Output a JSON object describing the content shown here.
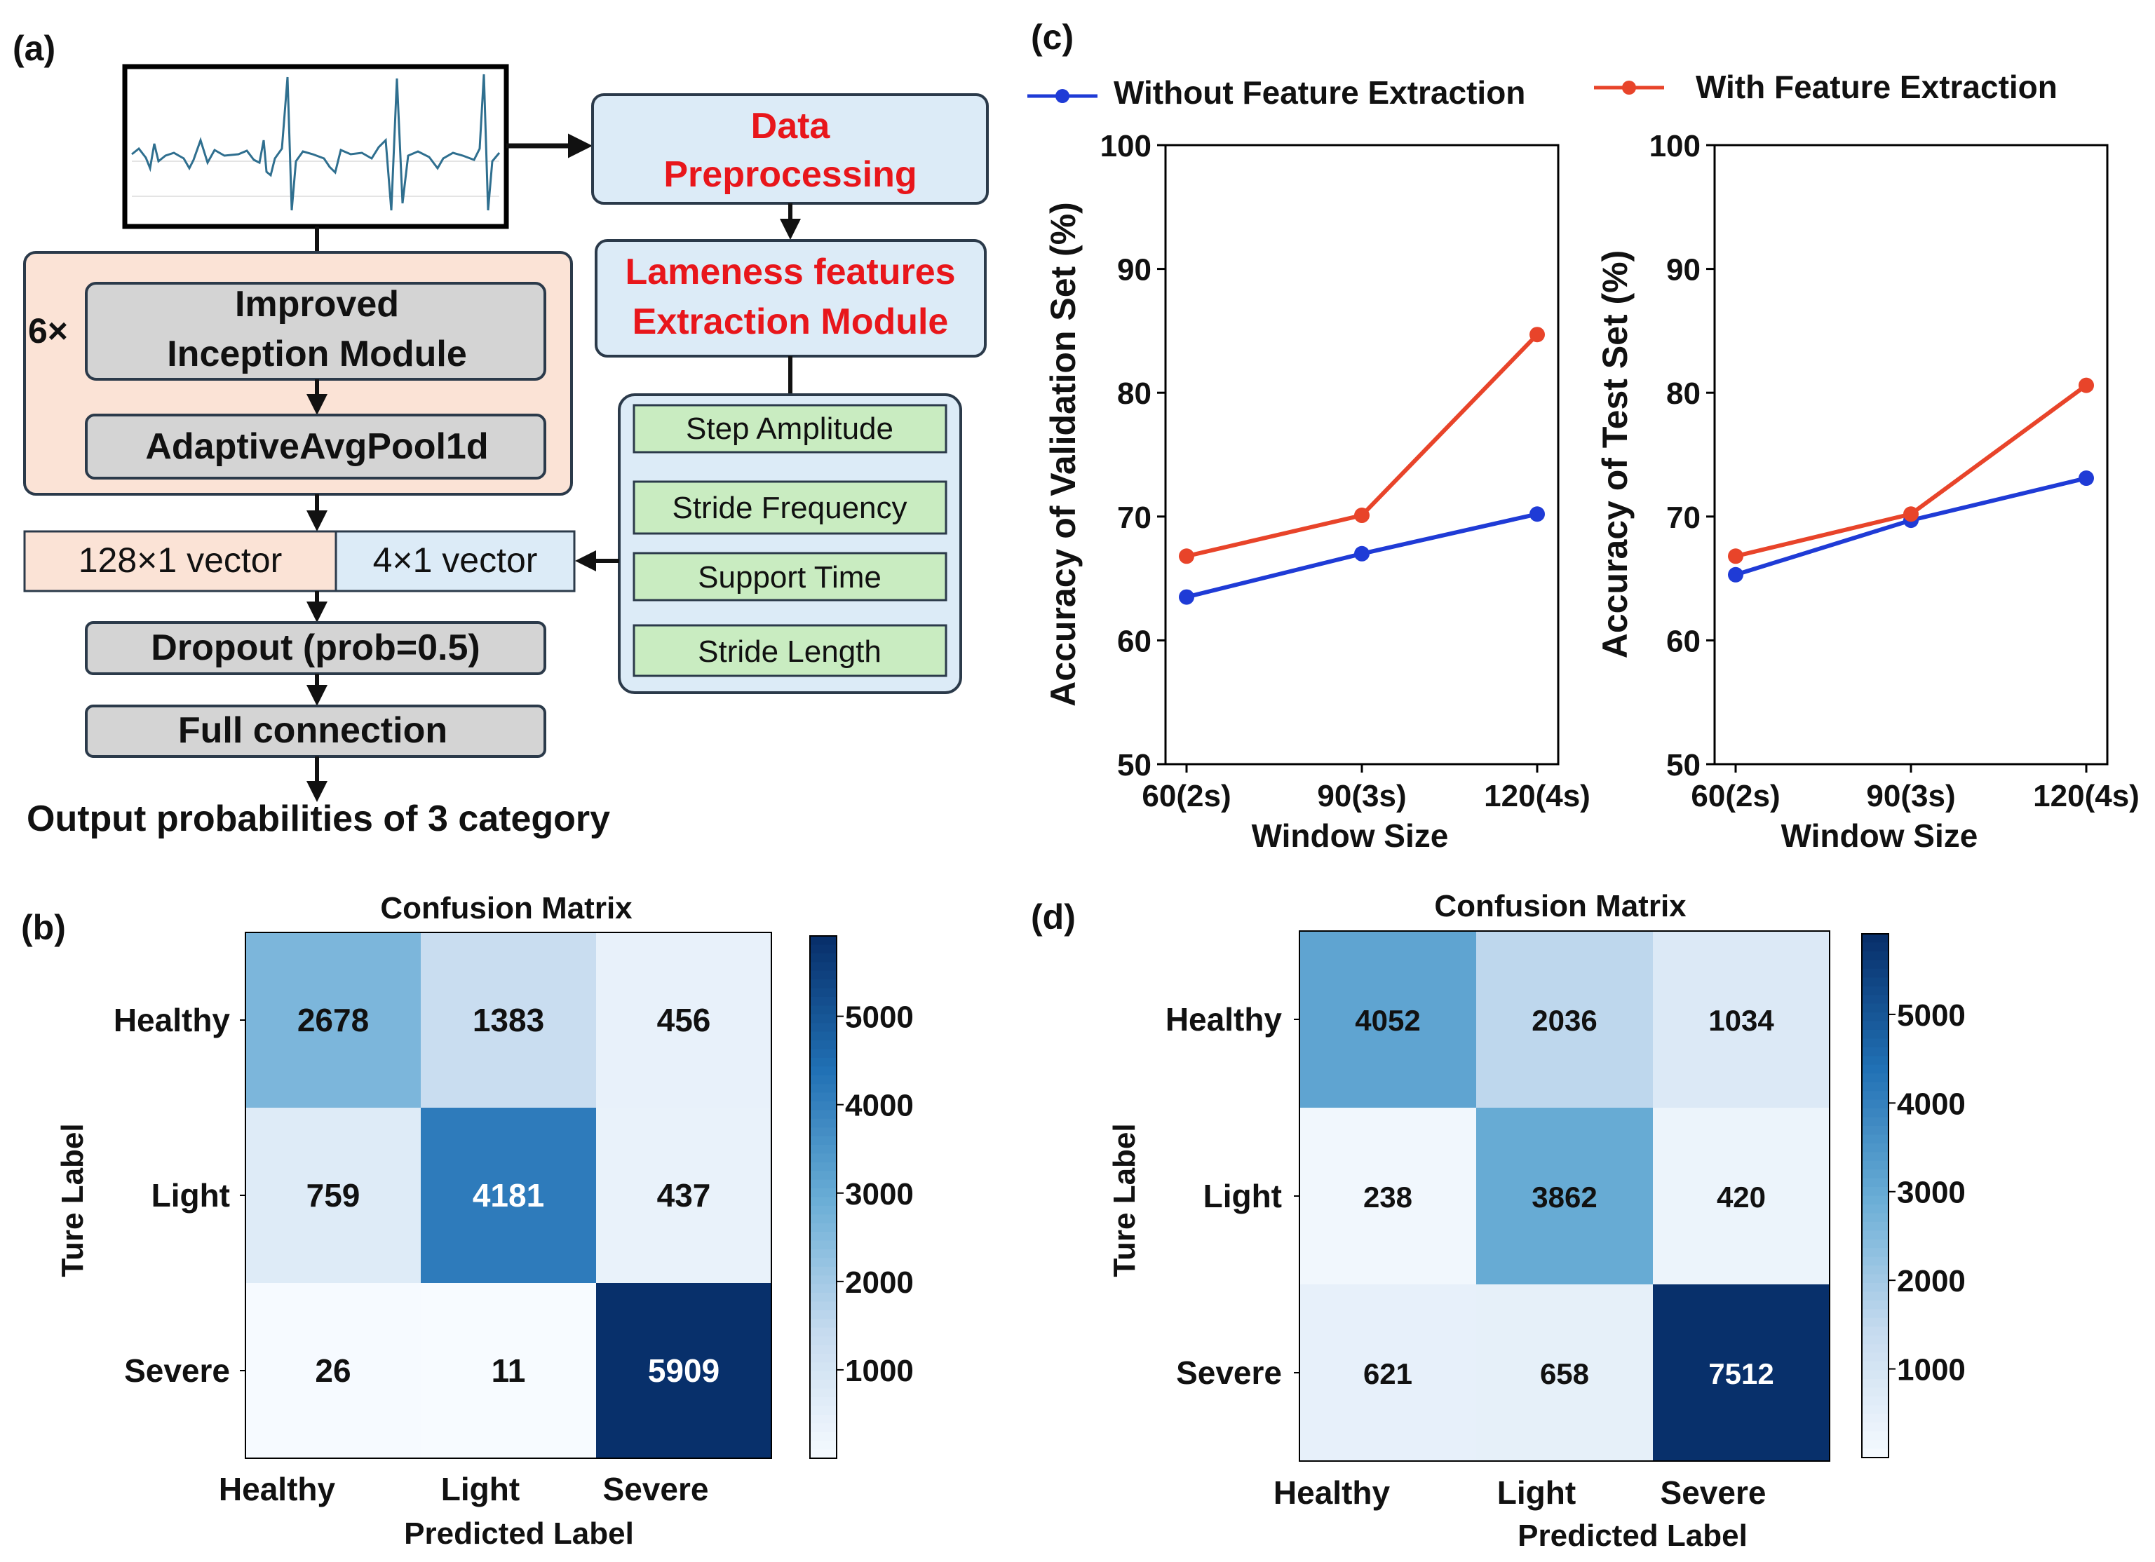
{
  "panel_labels": {
    "a": "(a)",
    "b": "(b)",
    "c": "(c)",
    "d": "(d)"
  },
  "diagram": {
    "preprocessing": [
      "Data",
      "Preprocessing"
    ],
    "feature_module": [
      "Lameness features",
      "Extraction Module"
    ],
    "features": [
      "Step Amplitude",
      "Stride Frequency",
      "Support Time",
      "Stride Length"
    ],
    "repeat": "6×",
    "inception": [
      "Improved",
      "Inception Module"
    ],
    "pool": "AdaptiveAvgPool1d",
    "vec128": "128×1 vector",
    "vec4": "4×1 vector",
    "dropout": "Dropout (prob=0.5)",
    "fc": "Full connection",
    "output": "Output probabilities of 3 category"
  },
  "colors": {
    "red_text": "#e8161b",
    "blue_line": "#1f3bd6",
    "orange_line": "#e8442a",
    "peach": "#fbe3d6",
    "light_blue": "#dcebf7",
    "green": "#c9ecc1",
    "gray": "#d4d4d4"
  },
  "chart_data": [
    {
      "type": "line",
      "categories": [
        "60(2s)",
        "90(3s)",
        "120(4s)"
      ],
      "series": [
        {
          "name": "Without Feature Extraction",
          "color": "#1f3bd6",
          "values": [
            63.5,
            67.0,
            70.2
          ]
        },
        {
          "name": "With Feature Extraction",
          "color": "#e8442a",
          "values": [
            66.8,
            70.1,
            84.7
          ]
        }
      ],
      "xlabel": "Window Size",
      "ylabel": "Accuracy of Validation Set (%)",
      "ylim": [
        50,
        100
      ],
      "yticks": [
        "50",
        "60",
        "70",
        "80",
        "90",
        "100"
      ],
      "legend": "top"
    },
    {
      "type": "line",
      "categories": [
        "60(2s)",
        "90(3s)",
        "120(4s)"
      ],
      "series": [
        {
          "name": "Without Feature Extraction",
          "color": "#1f3bd6",
          "values": [
            65.3,
            69.7,
            73.1
          ]
        },
        {
          "name": "With Feature Extraction",
          "color": "#e8442a",
          "values": [
            66.8,
            70.2,
            80.6
          ]
        }
      ],
      "xlabel": "Window Size",
      "ylabel": "Accuracy of Test Set (%)",
      "ylim": [
        50,
        100
      ],
      "yticks": [
        "50",
        "60",
        "70",
        "80",
        "90",
        "100"
      ]
    },
    {
      "type": "heatmap",
      "title": "Confusion Matrix",
      "rows": [
        "Healthy",
        "Light",
        "Severe"
      ],
      "cols": [
        "Healthy",
        "Light",
        "Severe"
      ],
      "values": [
        [
          2678,
          1383,
          456
        ],
        [
          759,
          4181,
          437
        ],
        [
          26,
          11,
          5909
        ]
      ],
      "ylabel": "Ture Label",
      "xlabel": "Predicted Label",
      "colorbar_ticks": [
        "1000",
        "2000",
        "3000",
        "4000",
        "5000"
      ],
      "colorbar_range": [
        0,
        5909
      ],
      "colormap": "Blues"
    },
    {
      "type": "heatmap",
      "title": "Confusion Matrix",
      "rows": [
        "Healthy",
        "Light",
        "Severe"
      ],
      "cols": [
        "Healthy",
        "Light",
        "Severe"
      ],
      "values": [
        [
          4052,
          2036,
          1034
        ],
        [
          238,
          3862,
          420
        ],
        [
          621,
          658,
          7512
        ]
      ],
      "ylabel": "Ture Label",
      "xlabel": "Predicted Label",
      "colorbar_ticks": [
        "1000",
        "2000",
        "3000",
        "4000",
        "5000"
      ],
      "colorbar_range": [
        0,
        5909
      ],
      "colormap": "Blues"
    }
  ]
}
